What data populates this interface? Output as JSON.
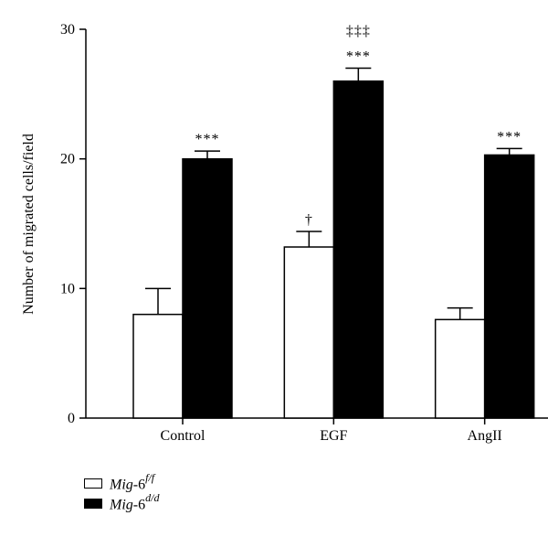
{
  "chart_data": {
    "type": "bar",
    "categories": [
      "Control",
      "EGF",
      "AngII"
    ],
    "ylabel": "Number of migrated cells/field",
    "ylim": [
      0,
      30
    ],
    "yticks": [
      "0",
      "10",
      "20",
      "30"
    ],
    "series": [
      {
        "name": "Mig-6f/f",
        "name_base": "Mig",
        "name_suffix": "-6",
        "name_sup": "f/f",
        "fill": "#ffffff",
        "values": [
          8.0,
          13.2,
          7.6
        ],
        "errors": [
          2.0,
          1.2,
          0.9
        ],
        "annotations": [
          "",
          "†",
          ""
        ]
      },
      {
        "name": "Mig-6d/d",
        "name_base": "Mig",
        "name_suffix": "-6",
        "name_sup": "d/d",
        "fill": "#000000",
        "values": [
          20.0,
          26.0,
          20.3
        ],
        "errors": [
          0.6,
          1.0,
          0.5
        ],
        "annotations": [
          "***",
          "***",
          "***"
        ]
      }
    ],
    "extra_annotations": [
      {
        "category": "EGF",
        "series": 1,
        "text": "‡‡‡"
      }
    ]
  }
}
